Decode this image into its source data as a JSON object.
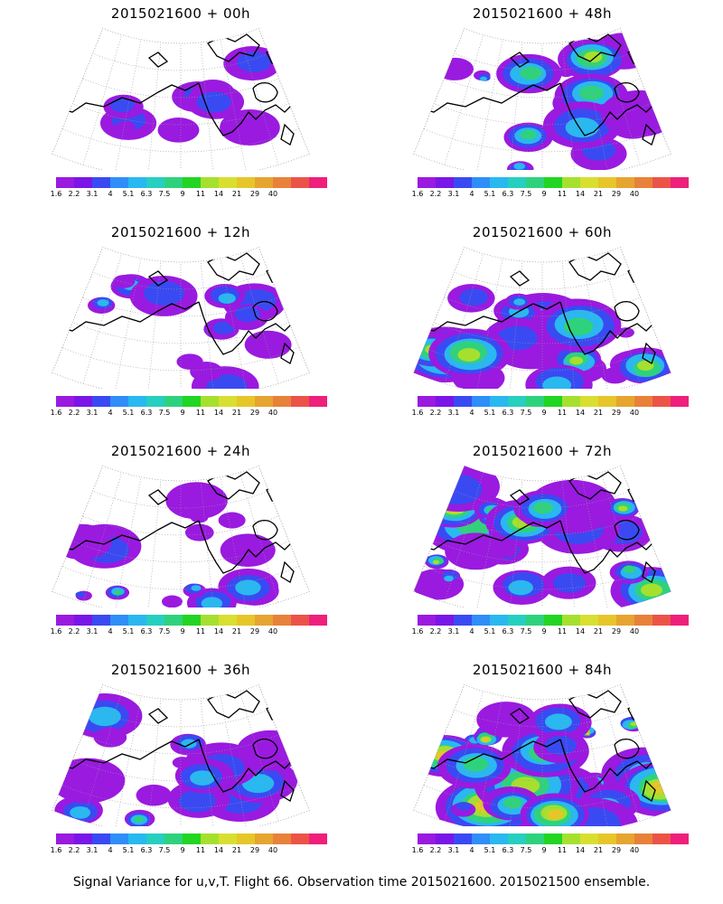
{
  "panels": [
    {
      "title": "2015021600 + 00h",
      "intensity": 0.15
    },
    {
      "title": "2015021600 + 48h",
      "intensity": 0.55
    },
    {
      "title": "2015021600 + 12h",
      "intensity": 0.25
    },
    {
      "title": "2015021600 + 60h",
      "intensity": 0.65
    },
    {
      "title": "2015021600 + 24h",
      "intensity": 0.35
    },
    {
      "title": "2015021600 + 72h",
      "intensity": 0.75
    },
    {
      "title": "2015021600 + 36h",
      "intensity": 0.45
    },
    {
      "title": "2015021600 + 84h",
      "intensity": 0.85
    }
  ],
  "colorbar": {
    "colors": [
      "#9a1ae0",
      "#7a16e8",
      "#3a4af2",
      "#2f8ef7",
      "#29b8f0",
      "#26cfc0",
      "#2fd27c",
      "#22d522",
      "#a6e02e",
      "#d8df30",
      "#e6c62a",
      "#e6a430",
      "#e8813a",
      "#ec5348",
      "#ef1f7c"
    ],
    "labels": [
      "1.6",
      "2.2",
      "3.1",
      "4",
      "5.1",
      "6.3",
      "7.5",
      "9",
      "11",
      "14",
      "21",
      "29",
      "40"
    ]
  },
  "caption": "Signal Variance for u,v,T. Flight 66. Observation time 2015021600. 2015021500 ensemble."
}
